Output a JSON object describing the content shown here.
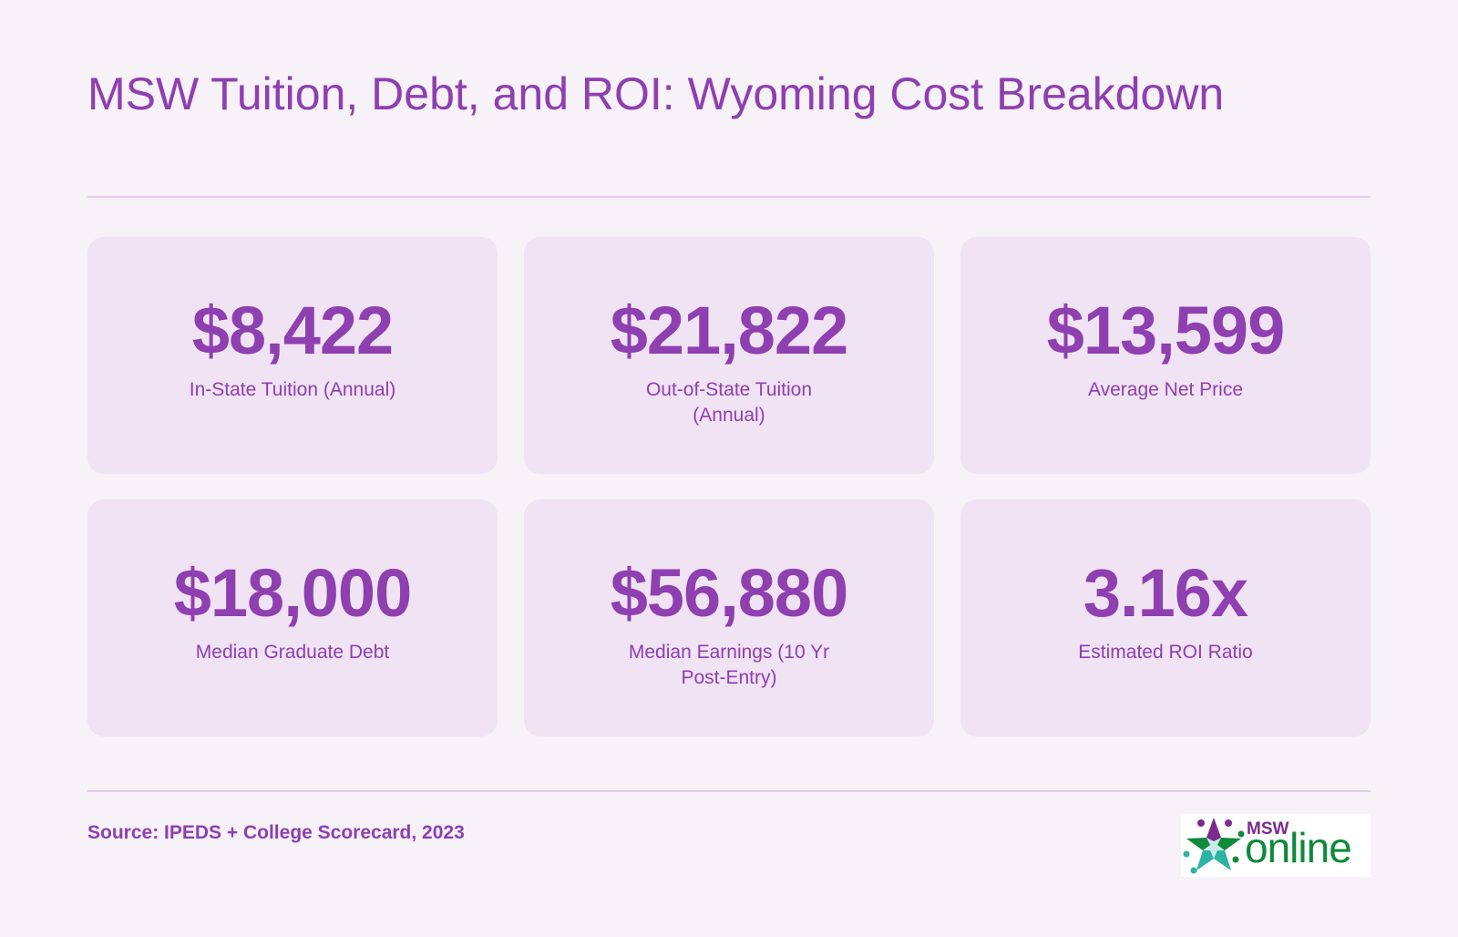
{
  "header": {
    "title": "MSW Tuition, Debt, and ROI: Wyoming Cost Breakdown"
  },
  "cards": [
    {
      "value": "$8,422",
      "label": "In-State Tuition (Annual)"
    },
    {
      "value": "$21,822",
      "label": "Out-of-State Tuition (Annual)"
    },
    {
      "value": "$13,599",
      "label": "Average Net Price"
    },
    {
      "value": "$18,000",
      "label": "Median Graduate Debt"
    },
    {
      "value": "$56,880",
      "label": "Median Earnings (10 Yr Post-Entry)"
    },
    {
      "value": "3.16x",
      "label": "Estimated ROI Ratio"
    }
  ],
  "footer": {
    "source": "Source: IPEDS + College Scorecard, 2023",
    "logo": {
      "msw": "MSW",
      "online": "online"
    }
  },
  "colors": {
    "background": "#f7f1f8",
    "card": "#f0e3f3",
    "accent": "#8e3fb0",
    "logo_purple": "#7b2a8e",
    "logo_green": "#0e8a3a",
    "logo_teal": "#2bb3a3"
  }
}
